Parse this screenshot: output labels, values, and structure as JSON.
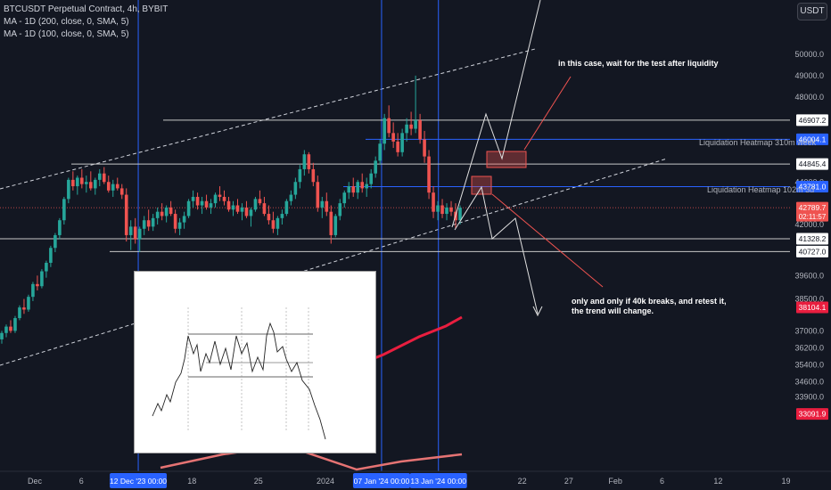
{
  "header": {
    "symbol_line": "BTCUSDT Perpetual Contract, 4h, BYBIT",
    "ma_200": "MA - 1D (200, close, 0, SMA, 5)",
    "ma_100": "MA - 1D (100, close, 0, SMA, 5)",
    "currency": "USDT"
  },
  "colors": {
    "background": "#131722",
    "up": "#26a69a",
    "down": "#ef5350",
    "blue_line": "#2962ff",
    "ma_line": "#e91e3f",
    "white_line": "#ffffff",
    "text": "#b2b5be"
  },
  "annotations": {
    "top_note": "in this case, wait for the test after liquidity",
    "bottom_note_1": "only and only if 40k breaks, and retest it,",
    "bottom_note_2": "the trend will change.",
    "heatmap_310m": "Liquidation Heatmap 310m week",
    "heatmap_102m": "Liquidation Heatmap 102m 3d"
  },
  "chart_data": {
    "type": "candlestick",
    "symbol": "BTCUSDT",
    "timeframe": "4h",
    "exchange": "BYBIT",
    "price_axis": {
      "ticks": [
        50000.0,
        49000.0,
        48000.0,
        44000.0,
        42000.0,
        39600.0,
        38500.0,
        37000.0,
        36200.0,
        35400.0,
        34600.0,
        33900.0
      ],
      "tick_labels": [
        "50000.0",
        "49000.0",
        "48000.0",
        "44000.0",
        "42000.0",
        "39600.0",
        "38500.0",
        "37000.0",
        "36200.0",
        "35400.0",
        "34600.0",
        "33900.0"
      ]
    },
    "time_axis": {
      "ticks": [
        {
          "label": "Dec",
          "x_frac": 0.044
        },
        {
          "label": "6",
          "x_frac": 0.103
        },
        {
          "label": "18",
          "x_frac": 0.243
        },
        {
          "label": "25",
          "x_frac": 0.327
        },
        {
          "label": "2024",
          "x_frac": 0.412
        },
        {
          "label": "22",
          "x_frac": 0.661
        },
        {
          "label": "27",
          "x_frac": 0.72
        },
        {
          "label": "Feb",
          "x_frac": 0.779
        },
        {
          "label": "6",
          "x_frac": 0.838
        },
        {
          "label": "12",
          "x_frac": 0.909
        },
        {
          "label": "19",
          "x_frac": 0.995
        }
      ],
      "highlighted": [
        {
          "label": "12 Dec '23  00:00",
          "x_frac": 0.175
        },
        {
          "label": "07 Jan '24  00:00",
          "x_frac": 0.483
        },
        {
          "label": "13 Jan '24  00:00",
          "x_frac": 0.555
        }
      ]
    },
    "horizontal_levels": [
      {
        "price": 46907.2,
        "label": "46907.2",
        "style": "white"
      },
      {
        "price": 46004.1,
        "label": "46004.1",
        "style": "blue"
      },
      {
        "price": 44845.4,
        "label": "44845.4",
        "style": "white"
      },
      {
        "price": 43781.0,
        "label": "43781.0",
        "style": "blue"
      },
      {
        "price": 41328.2,
        "label": "41328.2",
        "style": "white"
      },
      {
        "price": 40727.0,
        "label": "40727.0",
        "style": "white"
      }
    ],
    "price_badges": [
      {
        "price": 42789.7,
        "label": "42789.7",
        "sub": "02:11:57",
        "color": "#ef5350"
      },
      {
        "price": 38104.1,
        "label": "38104.1",
        "color": "#e91e3f"
      },
      {
        "price": 33091.9,
        "label": "33091.9",
        "color": "#e91e3f"
      }
    ],
    "candles": [
      [
        36600,
        37000,
        36400,
        36900
      ],
      [
        36900,
        37300,
        36700,
        37200
      ],
      [
        37200,
        37500,
        36900,
        37000
      ],
      [
        37000,
        37700,
        36900,
        37600
      ],
      [
        37600,
        38200,
        37500,
        38100
      ],
      [
        38100,
        38500,
        37800,
        38000
      ],
      [
        38000,
        38700,
        37900,
        38600
      ],
      [
        38600,
        39300,
        38400,
        39200
      ],
      [
        39200,
        39600,
        38900,
        39100
      ],
      [
        39100,
        39900,
        39000,
        39800
      ],
      [
        39800,
        40300,
        39500,
        40200
      ],
      [
        40200,
        41000,
        40000,
        40900
      ],
      [
        40900,
        41600,
        40700,
        41500
      ],
      [
        41500,
        42300,
        41300,
        42200
      ],
      [
        42200,
        43300,
        42000,
        43200
      ],
      [
        43200,
        44200,
        43000,
        44100
      ],
      [
        44100,
        44500,
        43600,
        43800
      ],
      [
        43800,
        44300,
        43400,
        44200
      ],
      [
        44200,
        44600,
        43700,
        43900
      ],
      [
        43900,
        44300,
        43500,
        44000
      ],
      [
        44000,
        44500,
        43600,
        43700
      ],
      [
        43700,
        44200,
        43400,
        44100
      ],
      [
        44100,
        44600,
        43800,
        44400
      ],
      [
        44400,
        44700,
        43900,
        44000
      ],
      [
        44000,
        44300,
        43500,
        43600
      ],
      [
        43600,
        44100,
        43300,
        43900
      ],
      [
        43900,
        44200,
        43600,
        43700
      ],
      [
        43700,
        43900,
        43200,
        43400
      ],
      [
        43400,
        43700,
        41200,
        41500
      ],
      [
        41500,
        42200,
        40800,
        41900
      ],
      [
        41900,
        42300,
        41100,
        41300
      ],
      [
        41300,
        41900,
        40700,
        41800
      ],
      [
        41800,
        42400,
        41500,
        42200
      ],
      [
        42200,
        42700,
        41700,
        41900
      ],
      [
        41900,
        42500,
        41700,
        42300
      ],
      [
        42300,
        42800,
        42000,
        42600
      ],
      [
        42600,
        43000,
        42200,
        42400
      ],
      [
        42400,
        42900,
        42100,
        42800
      ],
      [
        42800,
        43100,
        42400,
        42500
      ],
      [
        42500,
        42700,
        41600,
        41800
      ],
      [
        41800,
        42300,
        41500,
        42100
      ],
      [
        42100,
        42600,
        41800,
        42400
      ],
      [
        42400,
        43200,
        42300,
        43100
      ],
      [
        43100,
        43600,
        42800,
        43300
      ],
      [
        43300,
        43500,
        42700,
        42900
      ],
      [
        42900,
        43300,
        42500,
        43100
      ],
      [
        43100,
        43400,
        42700,
        42800
      ],
      [
        42800,
        43200,
        42500,
        43000
      ],
      [
        43000,
        43500,
        42800,
        43400
      ],
      [
        43400,
        43800,
        43100,
        43300
      ],
      [
        43300,
        43600,
        42900,
        43100
      ],
      [
        43100,
        43300,
        42600,
        42700
      ],
      [
        42700,
        43100,
        42400,
        42900
      ],
      [
        42900,
        43200,
        42500,
        42600
      ],
      [
        42600,
        43000,
        42200,
        42800
      ],
      [
        42800,
        43100,
        42300,
        42400
      ],
      [
        42400,
        42800,
        41900,
        42700
      ],
      [
        42700,
        43300,
        42600,
        43200
      ],
      [
        43200,
        43600,
        42900,
        43000
      ],
      [
        43000,
        43300,
        42400,
        42500
      ],
      [
        42500,
        42900,
        42000,
        42200
      ],
      [
        42200,
        42600,
        41600,
        41800
      ],
      [
        41800,
        42400,
        41500,
        42300
      ],
      [
        42300,
        42700,
        42000,
        42500
      ],
      [
        42500,
        43200,
        42400,
        43100
      ],
      [
        43100,
        43600,
        42900,
        43400
      ],
      [
        43400,
        44200,
        43200,
        44000
      ],
      [
        44000,
        44800,
        43700,
        44600
      ],
      [
        44600,
        45500,
        44300,
        45300
      ],
      [
        45300,
        45400,
        44400,
        44600
      ],
      [
        44600,
        44900,
        43800,
        44000
      ],
      [
        44000,
        44300,
        42600,
        42800
      ],
      [
        42800,
        43300,
        42300,
        43100
      ],
      [
        43100,
        43500,
        42400,
        42600
      ],
      [
        42600,
        42900,
        41100,
        41500
      ],
      [
        41500,
        42500,
        41400,
        42400
      ],
      [
        42400,
        43200,
        42200,
        43000
      ],
      [
        43000,
        43600,
        42800,
        43500
      ],
      [
        43500,
        44000,
        43200,
        43800
      ],
      [
        43800,
        44200,
        43300,
        43500
      ],
      [
        43500,
        44100,
        43200,
        44000
      ],
      [
        44000,
        44400,
        43500,
        43700
      ],
      [
        43700,
        44200,
        43300,
        43900
      ],
      [
        43900,
        44600,
        43700,
        44400
      ],
      [
        44400,
        45200,
        44200,
        45000
      ],
      [
        45000,
        46000,
        44800,
        45800
      ],
      [
        45800,
        47200,
        45500,
        47000
      ],
      [
        47000,
        47600,
        46100,
        46300
      ],
      [
        46300,
        46800,
        45600,
        45900
      ],
      [
        45900,
        46300,
        45200,
        45400
      ],
      [
        45400,
        46500,
        45200,
        46300
      ],
      [
        46300,
        47000,
        45900,
        46700
      ],
      [
        46700,
        47300,
        46200,
        46500
      ],
      [
        46500,
        49000,
        46300,
        46900
      ],
      [
        46900,
        47200,
        45800,
        46000
      ],
      [
        46000,
        46400,
        44900,
        45200
      ],
      [
        45200,
        45500,
        43200,
        43500
      ],
      [
        43500,
        43800,
        42300,
        42600
      ],
      [
        42600,
        43100,
        42200,
        42900
      ],
      [
        42900,
        43200,
        42300,
        42500
      ],
      [
        42500,
        43000,
        42200,
        42800
      ],
      [
        42800,
        43100,
        42400,
        42600
      ],
      [
        42600,
        43000,
        41800,
        42200
      ],
      [
        42200,
        42900,
        42000,
        42790
      ]
    ]
  }
}
